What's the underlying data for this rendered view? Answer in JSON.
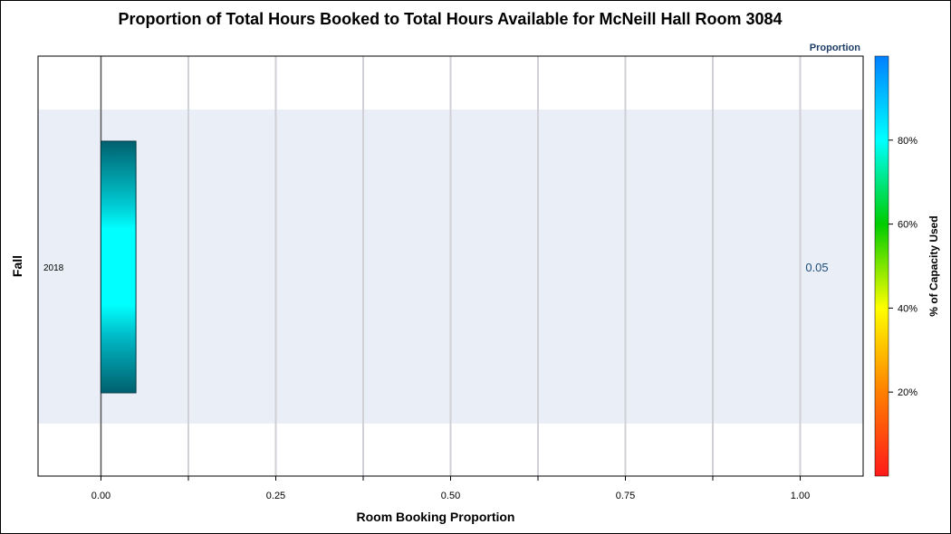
{
  "chart_data": {
    "type": "bar",
    "orientation": "horizontal",
    "title": "Proportion of Total Hours Booked to Total Hours Available for McNeill Hall Room 3084",
    "xlabel": "Room Booking Proportion",
    "ylabel": "Fall",
    "categories": [
      "2018"
    ],
    "values": [
      0.05
    ],
    "data_labels": [
      "0.05"
    ],
    "xlim": [
      -0.09,
      1.09
    ],
    "x_ticks": [
      0.0,
      0.25,
      0.5,
      0.75,
      1.0
    ],
    "x_tick_labels": [
      "0.00",
      "0.25",
      "0.50",
      "0.75",
      "1.00"
    ],
    "x_minor_ticks": [
      0.125,
      0.375,
      0.625,
      0.875
    ],
    "grid": true,
    "reference_line_x": 0,
    "bar_fill_note": "gradient by % of capacity",
    "bar_colors": {
      "edge": "#00606f",
      "mid": "#00ffff",
      "outline": "#003a44"
    },
    "band_color": "#e9eef7",
    "legend": {
      "title": "Proportion",
      "axis_label": "% of Capacity Used",
      "placement": "right",
      "range": [
        0,
        100
      ],
      "ticks": [
        20,
        40,
        60,
        80
      ],
      "tick_labels": [
        "20%",
        "40%",
        "60%",
        "80%"
      ],
      "gradient_colors": [
        "#ff1a1a",
        "#ff7f00",
        "#ffff00",
        "#00cc00",
        "#00ffff",
        "#0080ff"
      ]
    }
  }
}
